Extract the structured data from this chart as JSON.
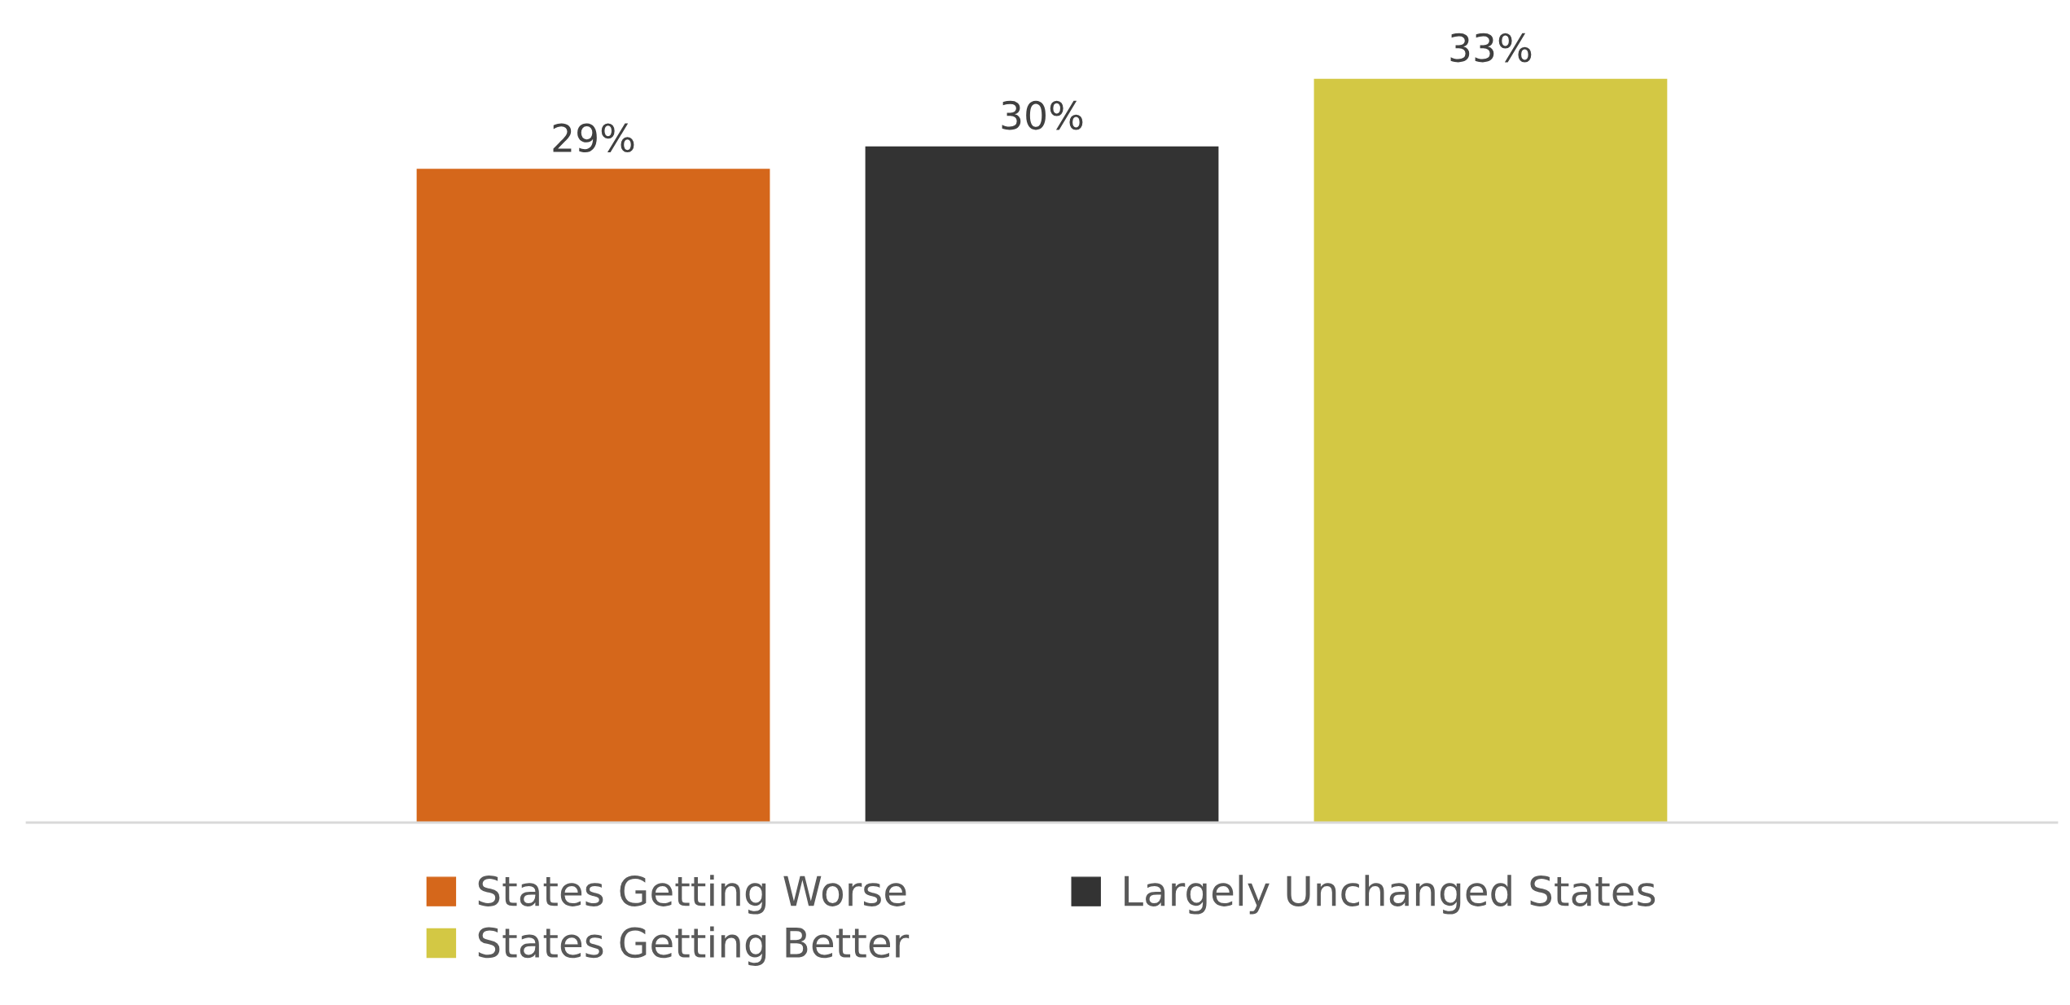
{
  "chart_data": {
    "type": "bar",
    "categories": [
      null
    ],
    "series": [
      {
        "name": "States Getting Worse",
        "color": "#d5671b",
        "values": [
          29
        ],
        "value_labels": [
          "29%"
        ]
      },
      {
        "name": "Largely Unchanged States",
        "color": "#333333",
        "values": [
          30
        ],
        "value_labels": [
          "30%"
        ]
      },
      {
        "name": "States Getting Better",
        "color": "#d3c844",
        "values": [
          33
        ],
        "value_labels": [
          "33%"
        ]
      }
    ],
    "grid": false,
    "legend": "bottom",
    "tick_labels": false
  }
}
